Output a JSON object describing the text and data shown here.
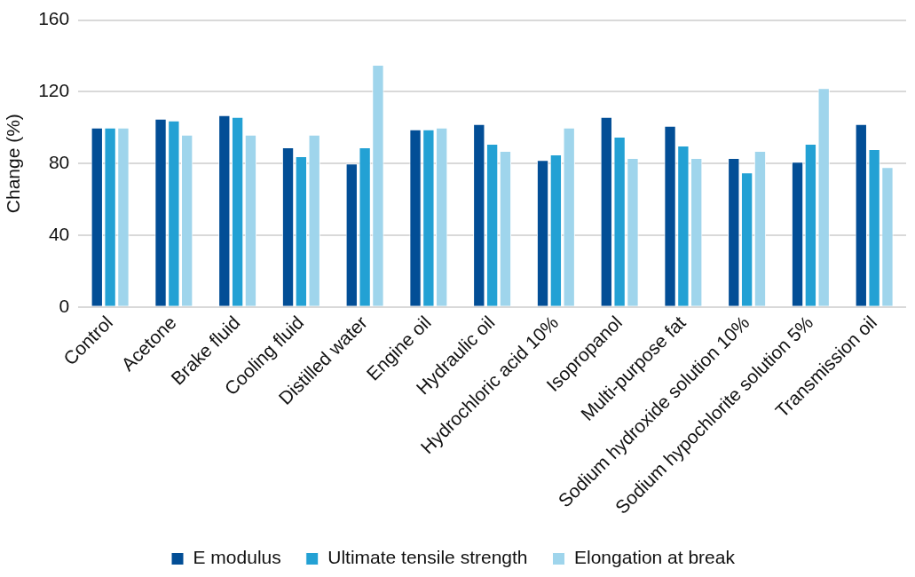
{
  "chart_data": {
    "type": "bar",
    "ylabel": "Change (%)",
    "categories": [
      "Control",
      "Acetone",
      "Brake fluid",
      "Cooling fluid",
      "Distilled water",
      "Engine oil",
      "Hydraulic oil",
      "Hydrochloric acid 10%",
      "Isopropanol",
      "Multi-purpose fat",
      "Sodium hydroxide solution 10%",
      "Sodium hypochlorite solution 5%",
      "Transmission oil"
    ],
    "series": [
      {
        "name": "E modulus",
        "color": "#024e96",
        "values": [
          100,
          105,
          107,
          89,
          80,
          99,
          102,
          82,
          106,
          101,
          83,
          81,
          102
        ]
      },
      {
        "name": "Ultimate tensile strength",
        "color": "#23a1d4",
        "values": [
          100,
          104,
          106,
          84,
          89,
          99,
          91,
          85,
          95,
          90,
          75,
          91,
          88
        ]
      },
      {
        "name": "Elongation at break",
        "color": "#9fd5ec",
        "values": [
          100,
          96,
          96,
          96,
          135,
          100,
          87,
          100,
          83,
          83,
          87,
          122,
          78
        ]
      }
    ],
    "ylim": [
      0,
      160
    ],
    "yticks": [
      0,
      40,
      80,
      120,
      160
    ],
    "grid": "y",
    "legend": "bottom"
  }
}
